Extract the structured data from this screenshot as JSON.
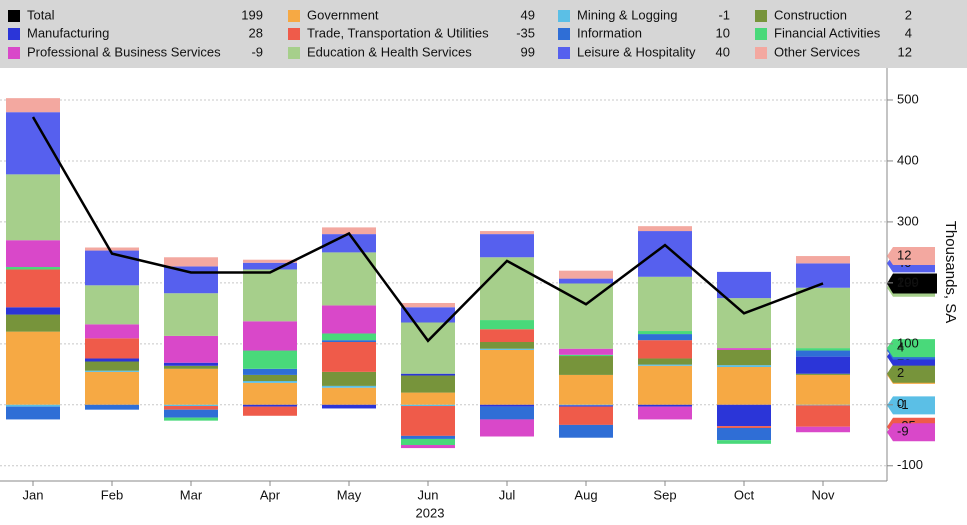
{
  "chart_data": {
    "type": "bar",
    "stacked": true,
    "x_label": "2023",
    "y_label": "Thousands, SA",
    "categories": [
      "Jan",
      "Feb",
      "Mar",
      "Apr",
      "May",
      "Jun",
      "Jul",
      "Aug",
      "Sep",
      "Oct",
      "Nov"
    ],
    "ylim": [
      -125,
      550
    ],
    "yticks": [
      -100,
      0,
      100,
      200,
      300,
      400,
      500
    ],
    "grid": true,
    "series": [
      {
        "name": "Total",
        "type": "line",
        "color": "#000000",
        "values": [
          472,
          248,
          217,
          217,
          281,
          105,
          236,
          165,
          262,
          150,
          199
        ]
      },
      {
        "name": "Government",
        "color": "#f6a944",
        "values": [
          120,
          54,
          59,
          36,
          28,
          20,
          90,
          49,
          64,
          62,
          49
        ]
      },
      {
        "name": "Mining & Logging",
        "color": "#5bbfe6",
        "values": [
          -3,
          2,
          -2,
          3,
          3,
          -2,
          2,
          -1,
          2,
          3,
          -1
        ]
      },
      {
        "name": "Construction",
        "color": "#77943b",
        "values": [
          28,
          15,
          5,
          10,
          23,
          28,
          11,
          31,
          10,
          25,
          2
        ]
      },
      {
        "name": "Manufacturing",
        "color": "#2b35d8",
        "values": [
          12,
          5,
          5,
          -3,
          -6,
          3,
          -3,
          -2,
          -3,
          -35,
          28
        ]
      },
      {
        "name": "Trade, Transportation & Utilities",
        "color": "#ef5b4a",
        "values": [
          62,
          33,
          -6,
          -15,
          49,
          -49,
          21,
          -30,
          30,
          -3,
          -35
        ]
      },
      {
        "name": "Information",
        "color": "#2f6ed6",
        "values": [
          -21,
          -8,
          -13,
          10,
          3,
          -5,
          -21,
          -21,
          10,
          -20,
          10
        ]
      },
      {
        "name": "Financial Activities",
        "color": "#49d97a",
        "values": [
          4,
          0,
          -5,
          30,
          11,
          -10,
          15,
          2,
          5,
          -6,
          4
        ]
      },
      {
        "name": "Professional & Business Services",
        "color": "#d948c9",
        "values": [
          44,
          23,
          44,
          48,
          46,
          -5,
          -28,
          10,
          -21,
          3,
          -9
        ]
      },
      {
        "name": "Education & Health Services",
        "color": "#a6cf8b",
        "values": [
          108,
          64,
          70,
          85,
          87,
          84,
          103,
          107,
          89,
          82,
          99
        ]
      },
      {
        "name": "Leisure & Hospitality",
        "color": "#5660ee",
        "values": [
          102,
          57,
          44,
          11,
          30,
          25,
          38,
          8,
          75,
          43,
          40
        ]
      },
      {
        "name": "Other Services",
        "color": "#f3a8a0",
        "values": [
          23,
          5,
          15,
          5,
          11,
          7,
          5,
          13,
          8,
          0,
          12
        ]
      }
    ]
  }
}
